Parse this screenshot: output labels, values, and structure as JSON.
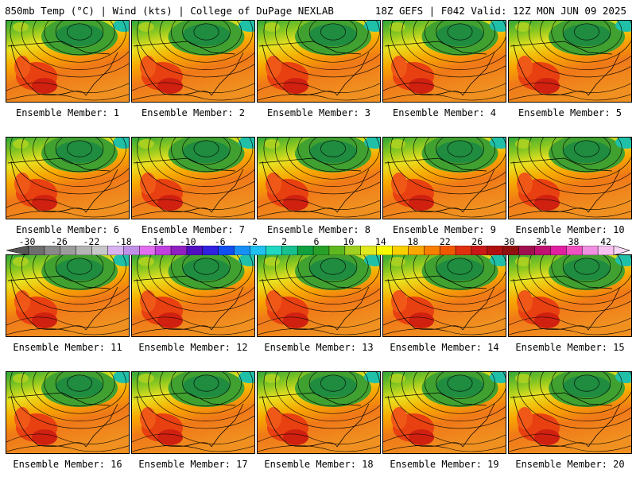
{
  "header": {
    "left": "850mb Temp (°C) | Wind (kts) | College of DuPage NEXLAB",
    "right": "18Z GEFS | F042 Valid: 12Z MON JUN 09 2025"
  },
  "panels": [
    {
      "label": "Ensemble Member: 1"
    },
    {
      "label": "Ensemble Member: 2"
    },
    {
      "label": "Ensemble Member: 3"
    },
    {
      "label": "Ensemble Member: 4"
    },
    {
      "label": "Ensemble Member: 5"
    },
    {
      "label": "Ensemble Member: 6"
    },
    {
      "label": "Ensemble Member: 7"
    },
    {
      "label": "Ensemble Member: 8"
    },
    {
      "label": "Ensemble Member: 9"
    },
    {
      "label": "Ensemble Member: 10"
    },
    {
      "label": "Ensemble Member: 11"
    },
    {
      "label": "Ensemble Member: 12"
    },
    {
      "label": "Ensemble Member: 13"
    },
    {
      "label": "Ensemble Member: 14"
    },
    {
      "label": "Ensemble Member: 15"
    },
    {
      "label": "Ensemble Member: 16"
    },
    {
      "label": "Ensemble Member: 17"
    },
    {
      "label": "Ensemble Member: 18"
    },
    {
      "label": "Ensemble Member: 19"
    },
    {
      "label": "Ensemble Member: 20"
    }
  ],
  "colorbar": {
    "labels": [
      "-30",
      "-26",
      "-22",
      "-18",
      "-14",
      "-10",
      "-6",
      "-2",
      "2",
      "6",
      "10",
      "14",
      "18",
      "22",
      "26",
      "30",
      "34",
      "38",
      "42"
    ],
    "colors": [
      "#6e6e6e",
      "#8a8a8a",
      "#9c9c9c",
      "#b4b4b4",
      "#c8c8c8",
      "#d7b4f0",
      "#c090e8",
      "#e070f0",
      "#c040e0",
      "#9020c0",
      "#5010c0",
      "#3020e0",
      "#1050f0",
      "#1890f8",
      "#20c0f0",
      "#20d8c0",
      "#18c090",
      "#10a040",
      "#28a028",
      "#60b820",
      "#a0d020",
      "#e0e820",
      "#f8f800",
      "#f8d000",
      "#f8a800",
      "#f88000",
      "#f05800",
      "#e03010",
      "#c81818",
      "#b01010",
      "#901010",
      "#a01050",
      "#c01070",
      "#e020a0",
      "#f050c0",
      "#f090e0",
      "#f8c0f0"
    ]
  }
}
